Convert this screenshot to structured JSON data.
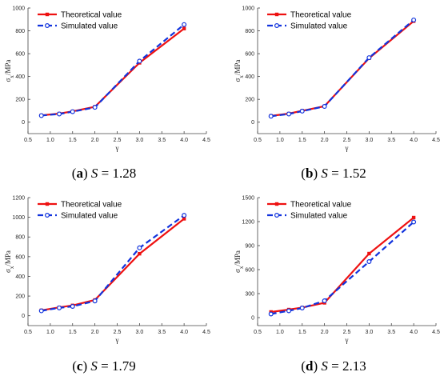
{
  "colors": {
    "theoretical": "#ee1111",
    "simulated": "#1133dd",
    "axis": "#444444"
  },
  "chart_data": [
    {
      "type": "line",
      "caption": {
        "letter": "a",
        "var": "S",
        "eq": " = 1.28"
      },
      "xlabel": "γ",
      "ylabel_main": "σ",
      "ylabel_sub": "x",
      "ylabel_tail": "/MPa",
      "xlim": [
        0.5,
        4.5
      ],
      "xticks": [
        0.5,
        1,
        1.5,
        2,
        2.5,
        3,
        3.5,
        4,
        4.5
      ],
      "xticklabels": [
        "0.5",
        "1.0",
        "1.5",
        "2.0",
        "2.5",
        "3.0",
        "3.5",
        "4.0",
        "4.5"
      ],
      "ylim": [
        -100,
        1000
      ],
      "yticks": [
        0,
        200,
        400,
        600,
        800,
        1000
      ],
      "series": [
        {
          "name": "Theoretical value",
          "x": [
            0.8,
            1.2,
            1.5,
            2.0,
            3.0,
            4.0
          ],
          "values": [
            60,
            75,
            95,
            135,
            520,
            820
          ]
        },
        {
          "name": "Simulated value",
          "x": [
            0.8,
            1.2,
            1.5,
            2.0,
            3.0,
            4.0
          ],
          "values": [
            58,
            72,
            92,
            130,
            535,
            855
          ]
        }
      ]
    },
    {
      "type": "line",
      "caption": {
        "letter": "b",
        "var": "S",
        "eq": " = 1.52"
      },
      "xlabel": "γ",
      "ylabel_main": "σ",
      "ylabel_sub": "x",
      "ylabel_tail": "/MPa",
      "xlim": [
        0.5,
        4.5
      ],
      "xticks": [
        0.5,
        1,
        1.5,
        2,
        2.5,
        3,
        3.5,
        4,
        4.5
      ],
      "xticklabels": [
        "0.5",
        "1.0",
        "1.5",
        "2.0",
        "2.5",
        "3.0",
        "3.5",
        "4.0",
        "4.5"
      ],
      "ylim": [
        -100,
        1000
      ],
      "yticks": [
        0,
        200,
        400,
        600,
        800,
        1000
      ],
      "series": [
        {
          "name": "Theoretical value",
          "x": [
            0.8,
            1.2,
            1.5,
            2.0,
            3.0,
            4.0
          ],
          "values": [
            55,
            75,
            100,
            140,
            560,
            885
          ]
        },
        {
          "name": "Simulated value",
          "x": [
            0.8,
            1.2,
            1.5,
            2.0,
            3.0,
            4.0
          ],
          "values": [
            52,
            72,
            97,
            138,
            565,
            895
          ]
        }
      ]
    },
    {
      "type": "line",
      "caption": {
        "letter": "c",
        "var": "S",
        "eq": " = 1.79"
      },
      "xlabel": "γ",
      "ylabel_main": "σ",
      "ylabel_sub": "x",
      "ylabel_tail": "/MPa",
      "xlim": [
        0.5,
        4.5
      ],
      "xticks": [
        0.5,
        1,
        1.5,
        2,
        2.5,
        3,
        3.5,
        4,
        4.5
      ],
      "xticklabels": [
        "0.5",
        "1.0",
        "1.5",
        "2.0",
        "2.5",
        "3.0",
        "3.5",
        "4.0",
        "4.5"
      ],
      "ylim": [
        -100,
        1200
      ],
      "yticks": [
        0,
        200,
        400,
        600,
        800,
        1000,
        1200
      ],
      "series": [
        {
          "name": "Theoretical value",
          "x": [
            0.8,
            1.2,
            1.5,
            2.0,
            3.0,
            4.0
          ],
          "values": [
            55,
            85,
            105,
            160,
            630,
            985
          ]
        },
        {
          "name": "Simulated value",
          "x": [
            0.8,
            1.2,
            1.5,
            2.0,
            3.0,
            4.0
          ],
          "values": [
            50,
            80,
            95,
            150,
            690,
            1020
          ]
        }
      ]
    },
    {
      "type": "line",
      "caption": {
        "letter": "d",
        "var": "S",
        "eq": " = 2.13"
      },
      "xlabel": "γ",
      "ylabel_main": "σ",
      "ylabel_sub": "x",
      "ylabel_tail": "/MPa",
      "xlim": [
        0.5,
        4.5
      ],
      "xticks": [
        0.5,
        1,
        1.5,
        2,
        2.5,
        3,
        3.5,
        4,
        4.5
      ],
      "xticklabels": [
        "0.5",
        "1.0",
        "1.5",
        "2.0",
        "2.5",
        "3.0",
        "3.5",
        "4.0",
        "4.5"
      ],
      "ylim": [
        -100,
        1500
      ],
      "yticks": [
        0,
        300,
        600,
        900,
        1200,
        1500
      ],
      "series": [
        {
          "name": "Theoretical value",
          "x": [
            0.8,
            1.2,
            1.5,
            2.0,
            3.0,
            4.0
          ],
          "values": [
            70,
            100,
            125,
            185,
            800,
            1250
          ]
        },
        {
          "name": "Simulated value",
          "x": [
            0.8,
            1.2,
            1.5,
            2.0,
            3.0,
            4.0
          ],
          "values": [
            45,
            85,
            120,
            210,
            700,
            1195
          ]
        }
      ]
    }
  ]
}
